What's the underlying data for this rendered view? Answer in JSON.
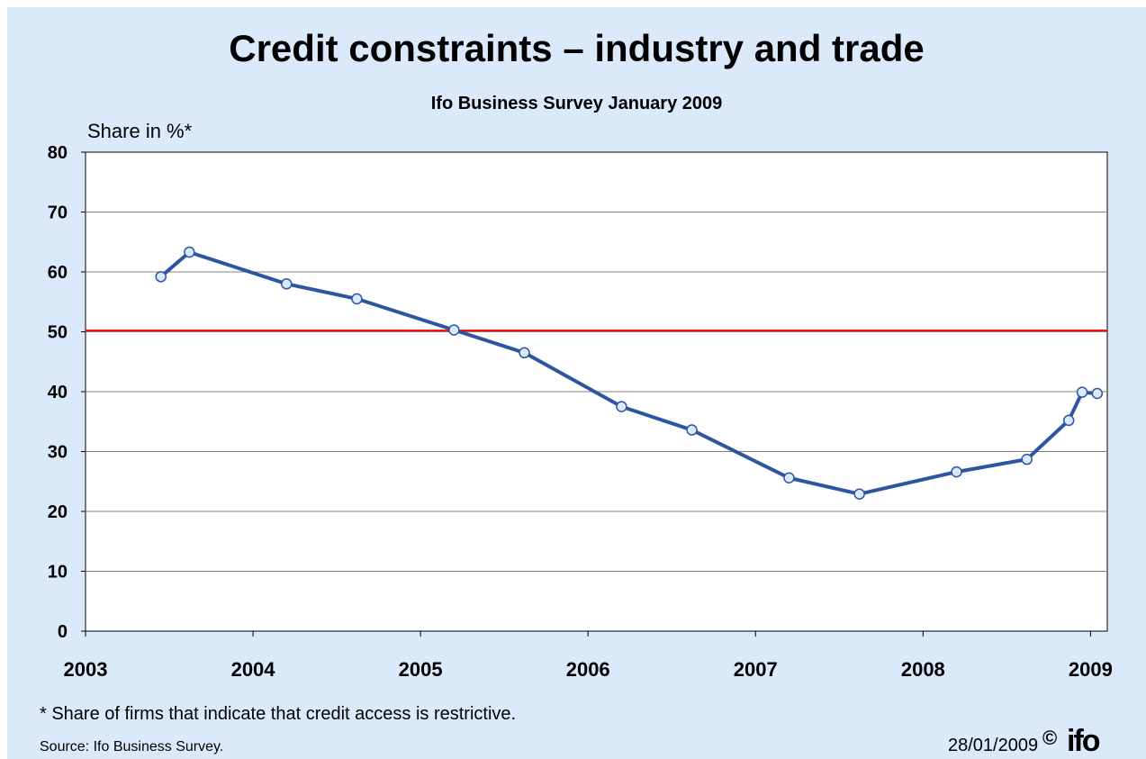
{
  "header": {
    "title": "Credit constraints – industry and trade",
    "subtitle": "Ifo Business Survey January 2009"
  },
  "chart_data": {
    "type": "line",
    "ylabel": "Share in %*",
    "xlabel": "",
    "ylim": [
      0,
      80
    ],
    "xlim": [
      2003,
      2009.1
    ],
    "y_ticks": [
      "0",
      "10",
      "20",
      "30",
      "40",
      "50",
      "60",
      "70",
      "80"
    ],
    "x_ticks": [
      "2003",
      "2004",
      "2005",
      "2006",
      "2007",
      "2008",
      "2009"
    ],
    "grid": "horizontal",
    "reference_line": {
      "y": 50.2,
      "color": "#ff0000"
    },
    "series": [
      {
        "color": "#2e56a0",
        "x": [
          2003.45,
          2003.62,
          2004.2,
          2004.62,
          2005.2,
          2005.62,
          2006.2,
          2006.62,
          2007.2,
          2007.62,
          2008.2,
          2008.62,
          2008.87,
          2008.95,
          2009.04
        ],
        "y": [
          59.2,
          63.3,
          58.0,
          55.5,
          50.3,
          46.5,
          37.5,
          33.6,
          25.6,
          22.9,
          26.6,
          28.7,
          35.2,
          39.9,
          39.7
        ]
      }
    ]
  },
  "footer": {
    "footnote": "* Share of firms that indicate that credit access is restrictive.",
    "source": "Source: Ifo Business Survey.",
    "date": "28/01/2009",
    "copyright": "©",
    "logo": "ifo"
  }
}
